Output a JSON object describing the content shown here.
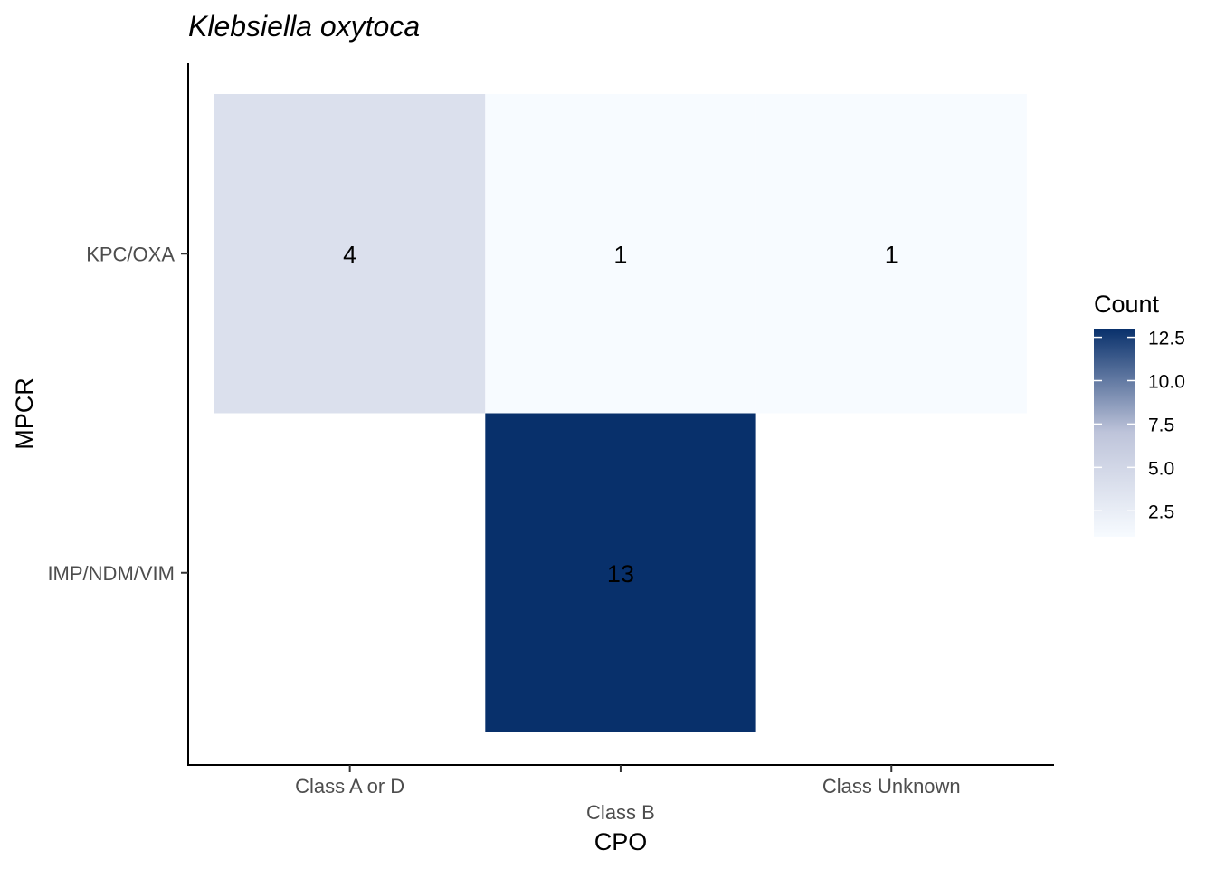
{
  "chart_data": {
    "type": "heatmap",
    "title": "Klebsiella oxytoca",
    "xlabel": "CPO",
    "ylabel": "MPCR",
    "x_categories": [
      "Class A or D",
      "Class B",
      "Class Unknown"
    ],
    "y_categories": [
      "KPC/OXA",
      "IMP/NDM/VIM"
    ],
    "cells": [
      {
        "x": "Class A or D",
        "y": "KPC/OXA",
        "value": 4
      },
      {
        "x": "Class B",
        "y": "KPC/OXA",
        "value": 1
      },
      {
        "x": "Class Unknown",
        "y": "KPC/OXA",
        "value": 1
      },
      {
        "x": "Class B",
        "y": "IMP/NDM/VIM",
        "value": 13
      }
    ],
    "legend": {
      "title": "Count",
      "placement": "right",
      "min": 1,
      "max": 13,
      "ticks": [
        "2.5",
        "5.0",
        "7.5",
        "10.0",
        "12.5"
      ],
      "low_color": "#f7fbff",
      "high_color": "#08306b"
    },
    "grid": false
  }
}
